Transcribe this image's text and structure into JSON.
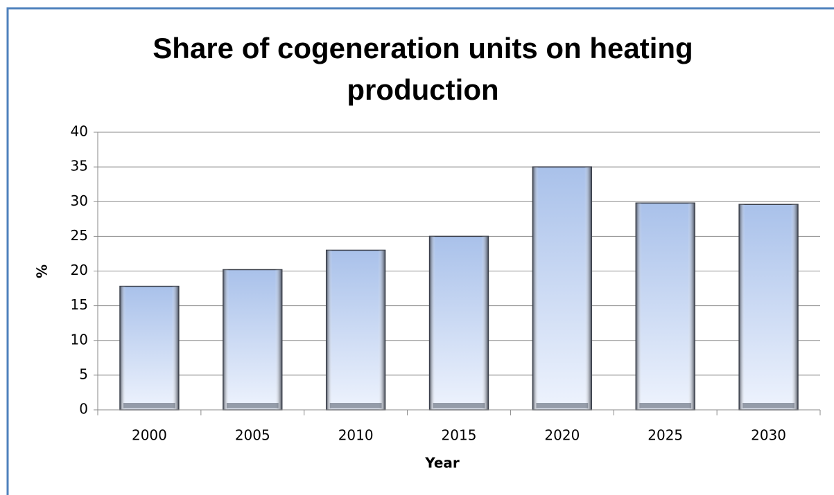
{
  "chart_data": {
    "type": "bar",
    "title": "Share of cogeneration units on heating production",
    "x_label": "Year",
    "y_label": "%",
    "categories": [
      "2000",
      "2005",
      "2010",
      "2015",
      "2020",
      "2025",
      "2030"
    ],
    "values": [
      17.8,
      20.2,
      23,
      25,
      35,
      29.8,
      29.6
    ],
    "color": "#a9c1ea",
    "ylim": [
      0,
      40
    ],
    "yticks": [
      0,
      5,
      10,
      15,
      20,
      25,
      30,
      35,
      40
    ],
    "grid": true
  }
}
